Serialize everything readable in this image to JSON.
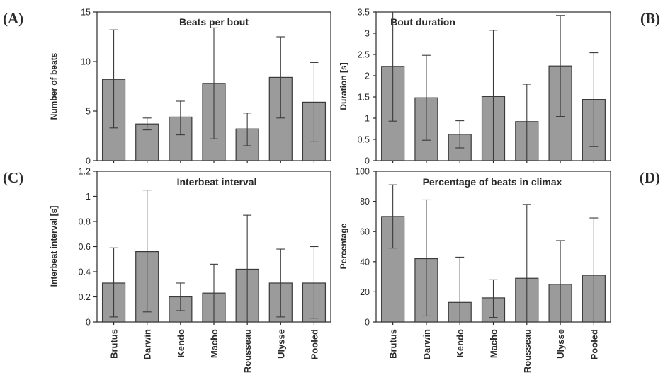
{
  "panel_letters": [
    "(A)",
    "(B)",
    "(C)",
    "(D)"
  ],
  "chart_data": [
    {
      "type": "bar",
      "panel": "(A)",
      "title": "Beats per bout",
      "ylabel": "Number of beats",
      "xlabel": "",
      "categories": [
        "Brutus",
        "Darwin",
        "Kendo",
        "Macho",
        "Rousseau",
        "Ulysse",
        "Pooled"
      ],
      "values": [
        8.2,
        3.7,
        4.4,
        7.8,
        3.2,
        8.4,
        5.9
      ],
      "error_low": [
        3.3,
        3.1,
        2.6,
        2.2,
        1.5,
        4.3,
        1.9
      ],
      "error_high": [
        13.2,
        4.3,
        6.0,
        13.4,
        4.8,
        12.5,
        9.9
      ],
      "ylim": [
        0,
        15
      ],
      "yticks": [
        0,
        5,
        10,
        15
      ],
      "ytick_labels": [
        "0",
        "5",
        "10",
        "15"
      ],
      "grid": false
    },
    {
      "type": "bar",
      "panel": "(B)",
      "title": "Bout duration",
      "ylabel": "Duration [s]",
      "xlabel": "",
      "categories": [
        "Brutus",
        "Darwin",
        "Kendo",
        "Macho",
        "Rousseau",
        "Ulysse",
        "Pooled"
      ],
      "values": [
        2.22,
        1.48,
        0.62,
        1.51,
        0.92,
        2.23,
        1.44
      ],
      "error_low": [
        0.93,
        0.48,
        0.3,
        0.0,
        0.0,
        1.04,
        0.33
      ],
      "error_high": [
        3.5,
        2.48,
        0.94,
        3.07,
        1.8,
        3.42,
        2.54
      ],
      "ylim": [
        0,
        3.5
      ],
      "yticks": [
        0,
        0.5,
        1,
        1.5,
        2,
        2.5,
        3,
        3.5
      ],
      "ytick_labels": [
        "0",
        "0.5",
        "1",
        "1.5",
        "2",
        "2.5",
        "3",
        "3.5"
      ],
      "grid": false
    },
    {
      "type": "bar",
      "panel": "(C)",
      "title": "Interbeat interval",
      "ylabel": "Interbeat interval [s]",
      "xlabel": "",
      "categories": [
        "Brutus",
        "Darwin",
        "Kendo",
        "Macho",
        "Rousseau",
        "Ulysse",
        "Pooled"
      ],
      "values": [
        0.31,
        0.56,
        0.2,
        0.23,
        0.42,
        0.31,
        0.31
      ],
      "error_low": [
        0.04,
        0.08,
        0.09,
        0.0,
        0.0,
        0.04,
        0.03
      ],
      "error_high": [
        0.59,
        1.05,
        0.31,
        0.46,
        0.85,
        0.58,
        0.6
      ],
      "ylim": [
        0,
        1.2
      ],
      "yticks": [
        0,
        0.2,
        0.4,
        0.6,
        0.8,
        1,
        1.2
      ],
      "ytick_labels": [
        "0",
        "0.2",
        "0.4",
        "0.6",
        "0.8",
        "1",
        "1.2"
      ],
      "grid": false
    },
    {
      "type": "bar",
      "panel": "(D)",
      "title": "Percentage of beats in climax",
      "ylabel": "Percentage",
      "xlabel": "",
      "categories": [
        "Brutus",
        "Darwin",
        "Kendo",
        "Macho",
        "Rousseau",
        "Ulysse",
        "Pooled"
      ],
      "values": [
        70,
        42,
        13,
        16,
        29,
        25,
        31
      ],
      "error_low": [
        49,
        4,
        0,
        3,
        0,
        0,
        0
      ],
      "error_high": [
        91,
        81,
        43,
        28,
        78,
        54,
        69
      ],
      "ylim": [
        0,
        100
      ],
      "yticks": [
        0,
        20,
        40,
        60,
        80,
        100
      ],
      "ytick_labels": [
        "0",
        "20",
        "40",
        "60",
        "80",
        "100"
      ],
      "grid": false
    }
  ]
}
